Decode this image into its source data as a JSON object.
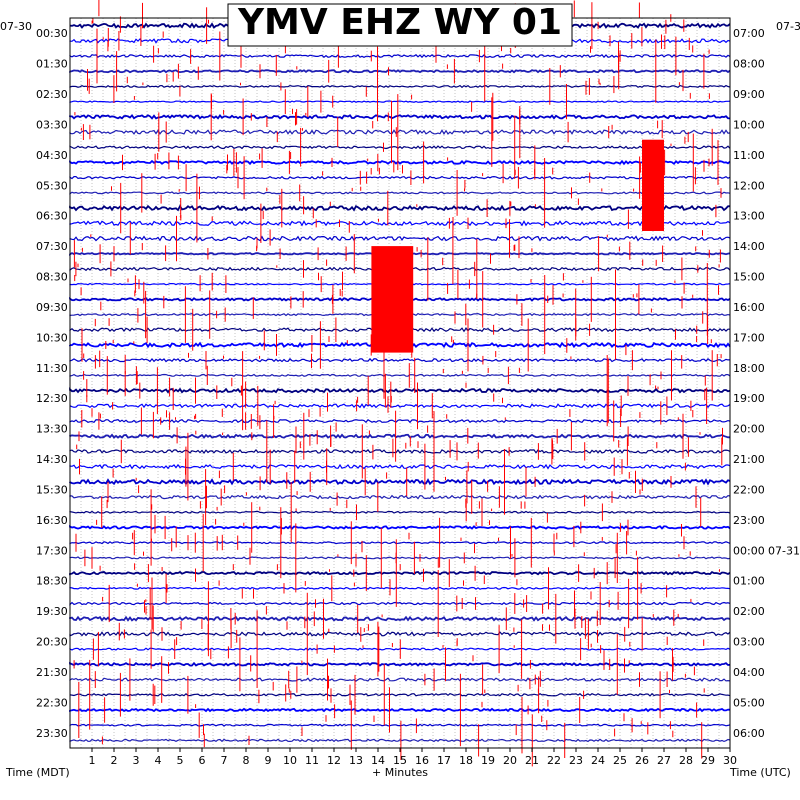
{
  "chart_data": {
    "type": "line",
    "title": "YMV EHZ WY 01",
    "xlabel": "+ Minutes",
    "ylabel_left": "Time (MDT)",
    "ylabel_right": "Time (UTC)",
    "xlim": [
      0,
      30
    ],
    "x_ticks": [
      "1",
      "2",
      "3",
      "4",
      "5",
      "6",
      "7",
      "8",
      "9",
      "10",
      "11",
      "12",
      "13",
      "14",
      "15",
      "16",
      "17",
      "18",
      "19",
      "20",
      "21",
      "22",
      "23",
      "24",
      "25",
      "26",
      "27",
      "28",
      "29",
      "30"
    ],
    "left_date": "07-30",
    "right_date_top": "07-30",
    "right_date_change": "07-31",
    "left_time_labels": [
      "00:30",
      "01:30",
      "02:30",
      "03:30",
      "04:30",
      "05:30",
      "06:30",
      "07:30",
      "08:30",
      "09:30",
      "10:30",
      "11:30",
      "12:30",
      "13:30",
      "14:30",
      "15:30",
      "16:30",
      "17:30",
      "18:30",
      "19:30",
      "20:30",
      "21:30",
      "22:30",
      "23:30"
    ],
    "right_time_labels": [
      "07:00",
      "08:00",
      "09:00",
      "10:00",
      "11:00",
      "12:00",
      "13:00",
      "14:00",
      "15:00",
      "16:00",
      "17:00",
      "18:00",
      "19:00",
      "20:00",
      "21:00",
      "22:00",
      "23:00",
      "00:00",
      "01:00",
      "02:00",
      "03:00",
      "04:00",
      "05:00",
      "06:00"
    ],
    "series": [],
    "colors": {
      "trace_palette": [
        "#000080",
        "#0000ff",
        "#0000cd",
        "#1e1eb4"
      ],
      "event": "#ff0000",
      "grid": "#888888"
    },
    "grid": true
  }
}
